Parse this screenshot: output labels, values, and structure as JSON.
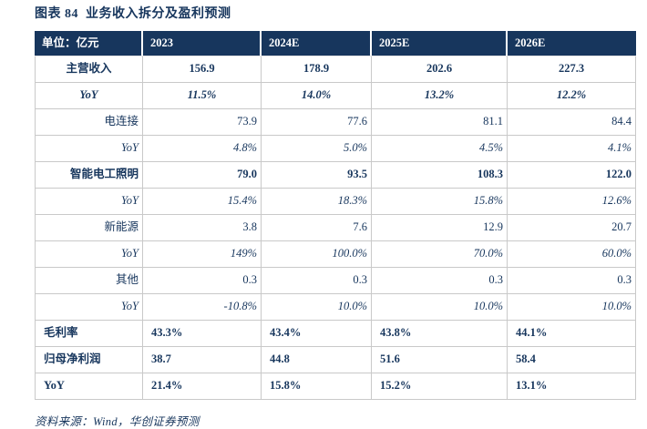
{
  "title": "图表 84  业务收入拆分及盈利预测",
  "source_note": "资料来源：Wind，华创证券预测",
  "colors": {
    "header_bg": "#17365D",
    "text": "#17365D",
    "border": "#C9C9C9"
  },
  "table": {
    "headers": [
      "单位：亿元",
      "2023",
      "2024E",
      "2025E",
      "2026E"
    ],
    "rows": [
      {
        "label": "主营收入",
        "values": [
          "156.9",
          "178.9",
          "202.6",
          "227.3"
        ],
        "align": "center",
        "bold": true,
        "italic": false
      },
      {
        "label": "YoY",
        "values": [
          "11.5%",
          "14.0%",
          "13.2%",
          "12.2%"
        ],
        "align": "center",
        "bold": true,
        "italic": true
      },
      {
        "label": "电连接",
        "values": [
          "73.9",
          "77.6",
          "81.1",
          "84.4"
        ],
        "align": "right",
        "bold": false,
        "italic": false
      },
      {
        "label": "YoY",
        "values": [
          "4.8%",
          "5.0%",
          "4.5%",
          "4.1%"
        ],
        "align": "right",
        "bold": false,
        "italic": true
      },
      {
        "label": "智能电工照明",
        "values": [
          "79.0",
          "93.5",
          "108.3",
          "122.0"
        ],
        "align": "right",
        "bold": true,
        "italic": false
      },
      {
        "label": "YoY",
        "values": [
          "15.4%",
          "18.3%",
          "15.8%",
          "12.6%"
        ],
        "align": "right",
        "bold": false,
        "italic": true
      },
      {
        "label": "新能源",
        "values": [
          "3.8",
          "7.6",
          "12.9",
          "20.7"
        ],
        "align": "right",
        "bold": false,
        "italic": false
      },
      {
        "label": "YoY",
        "values": [
          "149%",
          "100.0%",
          "70.0%",
          "60.0%"
        ],
        "align": "right",
        "bold": false,
        "italic": true
      },
      {
        "label": "其他",
        "values": [
          "0.3",
          "0.3",
          "0.3",
          "0.3"
        ],
        "align": "right",
        "bold": false,
        "italic": false
      },
      {
        "label": "YoY",
        "values": [
          "-10.8%",
          "10.0%",
          "10.0%",
          "10.0%"
        ],
        "align": "right",
        "bold": false,
        "italic": true
      },
      {
        "label": "毛利率",
        "values": [
          "43.3%",
          "43.4%",
          "43.8%",
          "44.1%"
        ],
        "align": "left",
        "bold": true,
        "italic": false
      },
      {
        "label": "归母净利润",
        "values": [
          "38.7",
          "44.8",
          "51.6",
          "58.4"
        ],
        "align": "left",
        "bold": true,
        "italic": false
      },
      {
        "label": "YoY",
        "values": [
          "21.4%",
          "15.8%",
          "15.2%",
          "13.1%"
        ],
        "align": "left",
        "bold": true,
        "italic": false
      }
    ]
  }
}
